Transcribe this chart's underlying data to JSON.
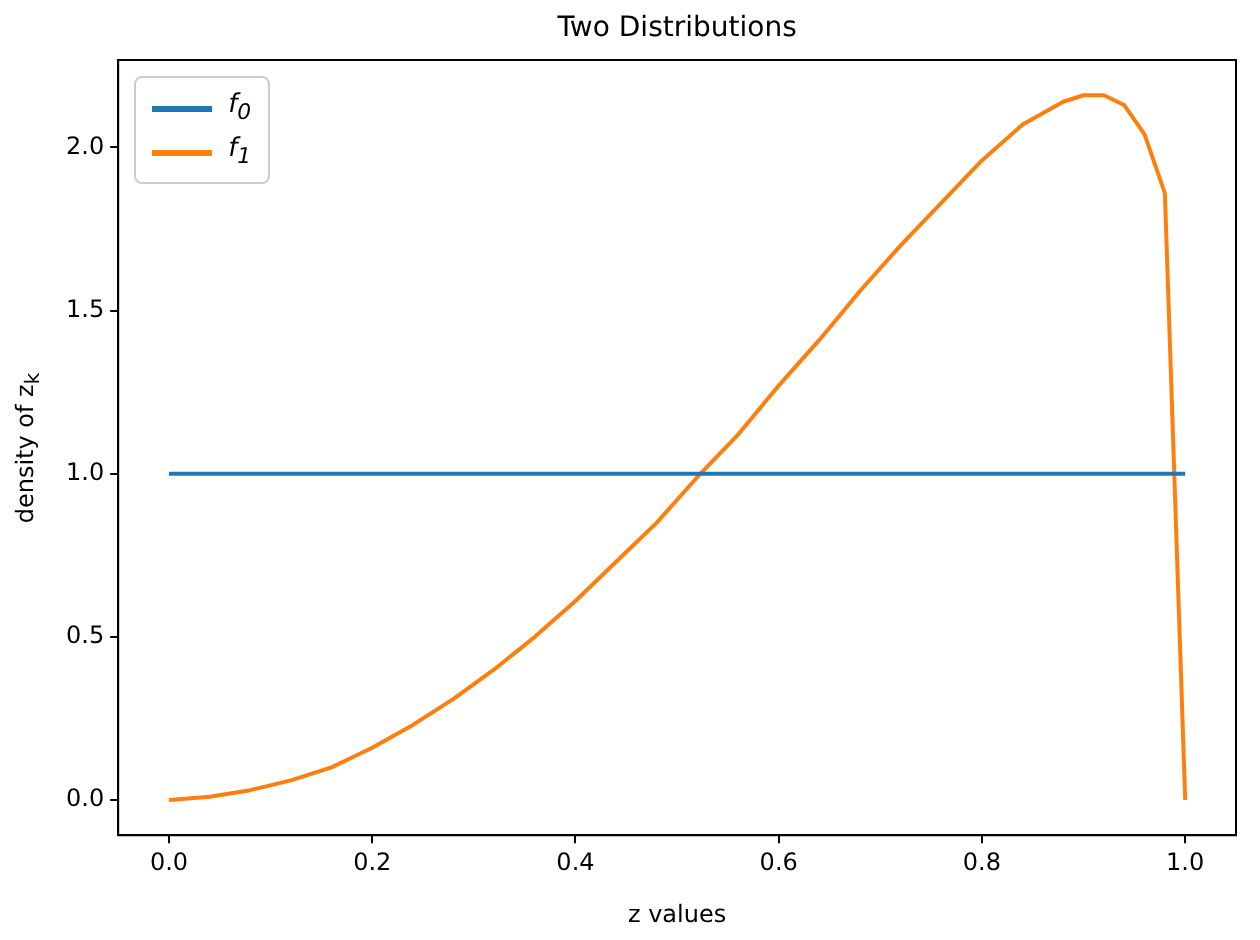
{
  "chart_data": {
    "type": "line",
    "title": "Two Distributions",
    "xlabel": "z values",
    "ylabel": "density of z$_{k}$",
    "xlim": [
      -0.05,
      1.05
    ],
    "ylim": [
      -0.108,
      2.268
    ],
    "xticks": [
      {
        "value": 0,
        "label": "0.0"
      },
      {
        "value": 0.2,
        "label": "0.2"
      },
      {
        "value": 0.4,
        "label": "0.4"
      },
      {
        "value": 0.6,
        "label": "0.6"
      },
      {
        "value": 0.8,
        "label": "0.8"
      },
      {
        "value": 1,
        "label": "1.0"
      }
    ],
    "yticks": [
      {
        "value": 0,
        "label": "0.0"
      },
      {
        "value": 0.5,
        "label": "0.5"
      },
      {
        "value": 1,
        "label": "1.0"
      },
      {
        "value": 1.5,
        "label": "1.5"
      },
      {
        "value": 2,
        "label": "2.0"
      }
    ],
    "grid": false,
    "legend": "top left",
    "marker": "none",
    "line_style": "solid",
    "series": [
      {
        "name": "f$_{0}$",
        "color": "#1f77b4",
        "x": [
          0,
          1
        ],
        "values": [
          1,
          1
        ]
      },
      {
        "name": "f$_{1}$",
        "color": "#ff7f0e",
        "x": [
          0,
          0.04,
          0.08,
          0.12,
          0.16,
          0.2,
          0.24,
          0.28,
          0.32,
          0.36,
          0.4,
          0.44,
          0.48,
          0.52,
          0.56,
          0.6,
          0.64,
          0.68,
          0.72,
          0.76,
          0.8,
          0.84,
          0.88,
          0.9,
          0.92,
          0.94,
          0.96,
          0.98,
          1
        ],
        "values": [
          0,
          0.01,
          0.03,
          0.06,
          0.1,
          0.16,
          0.23,
          0.31,
          0.4,
          0.5,
          0.61,
          0.73,
          0.85,
          0.99,
          1.12,
          1.27,
          1.41,
          1.56,
          1.7,
          1.83,
          1.96,
          2.07,
          2.14,
          2.16,
          2.16,
          2.13,
          2.04,
          1.86,
          0
        ]
      }
    ]
  }
}
